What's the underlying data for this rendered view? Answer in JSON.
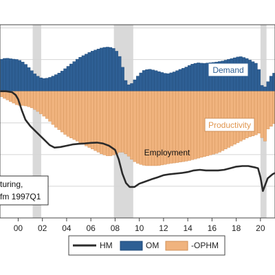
{
  "chart_data": {
    "type": "area",
    "x_tick_labels": [
      "00",
      "02",
      "04",
      "06",
      "08",
      "10",
      "12",
      "14",
      "16",
      "18",
      "20"
    ],
    "xlim": [
      1998.5,
      2021.2
    ],
    "ylim": [
      -0.4,
      0.21
    ],
    "recessions": [
      [
        2001.2,
        2001.9
      ],
      [
        2007.9,
        2009.5
      ],
      [
        2020.0,
        2020.5
      ]
    ],
    "colors": {
      "HM": "#2b2b2b",
      "OM": "#2e5f94",
      "OM_edge": "#1f4a78",
      "OPHM": "#f0b37e",
      "OPHM_edge": "#d08f55",
      "recession": "#d9d9d9"
    },
    "series": [
      {
        "name": "HM",
        "kind": "line",
        "points": [
          [
            1998.5,
            0.0
          ],
          [
            1999.0,
            0.0
          ],
          [
            1999.5,
            -0.003
          ],
          [
            1999.8,
            -0.012
          ],
          [
            2000.0,
            -0.025
          ],
          [
            2000.3,
            -0.06
          ],
          [
            2000.6,
            -0.09
          ],
          [
            2001.0,
            -0.11
          ],
          [
            2001.4,
            -0.125
          ],
          [
            2001.8,
            -0.14
          ],
          [
            2002.2,
            -0.155
          ],
          [
            2002.6,
            -0.17
          ],
          [
            2003.0,
            -0.178
          ],
          [
            2003.5,
            -0.176
          ],
          [
            2004.0,
            -0.172
          ],
          [
            2004.5,
            -0.168
          ],
          [
            2005.0,
            -0.166
          ],
          [
            2005.5,
            -0.165
          ],
          [
            2006.0,
            -0.163
          ],
          [
            2006.5,
            -0.162
          ],
          [
            2007.0,
            -0.165
          ],
          [
            2007.5,
            -0.172
          ],
          [
            2008.0,
            -0.185
          ],
          [
            2008.3,
            -0.215
          ],
          [
            2008.6,
            -0.26
          ],
          [
            2008.9,
            -0.29
          ],
          [
            2009.2,
            -0.302
          ],
          [
            2009.6,
            -0.302
          ],
          [
            2010.0,
            -0.292
          ],
          [
            2010.5,
            -0.285
          ],
          [
            2011.0,
            -0.278
          ],
          [
            2011.5,
            -0.272
          ],
          [
            2012.0,
            -0.265
          ],
          [
            2012.5,
            -0.262
          ],
          [
            2013.0,
            -0.26
          ],
          [
            2013.5,
            -0.258
          ],
          [
            2014.0,
            -0.255
          ],
          [
            2014.5,
            -0.25
          ],
          [
            2015.0,
            -0.248
          ],
          [
            2015.5,
            -0.25
          ],
          [
            2016.0,
            -0.25
          ],
          [
            2016.5,
            -0.25
          ],
          [
            2017.0,
            -0.248
          ],
          [
            2017.5,
            -0.243
          ],
          [
            2018.0,
            -0.238
          ],
          [
            2018.5,
            -0.236
          ],
          [
            2019.0,
            -0.236
          ],
          [
            2019.5,
            -0.24
          ],
          [
            2019.8,
            -0.243
          ],
          [
            2020.0,
            -0.272
          ],
          [
            2020.2,
            -0.315
          ],
          [
            2020.35,
            -0.3
          ],
          [
            2020.6,
            -0.275
          ],
          [
            2021.0,
            -0.262
          ],
          [
            2021.2,
            -0.258
          ]
        ]
      },
      {
        "name": "OM",
        "kind": "area",
        "points": [
          [
            1998.5,
            0.1
          ],
          [
            1999.0,
            0.105
          ],
          [
            1999.5,
            0.102
          ],
          [
            2000.0,
            0.1
          ],
          [
            2000.5,
            0.09
          ],
          [
            2001.0,
            0.07
          ],
          [
            2001.5,
            0.05
          ],
          [
            2002.0,
            0.04
          ],
          [
            2002.5,
            0.042
          ],
          [
            2003.0,
            0.05
          ],
          [
            2003.5,
            0.06
          ],
          [
            2004.0,
            0.075
          ],
          [
            2004.5,
            0.09
          ],
          [
            2005.0,
            0.105
          ],
          [
            2005.5,
            0.115
          ],
          [
            2006.0,
            0.125
          ],
          [
            2006.5,
            0.132
          ],
          [
            2007.0,
            0.138
          ],
          [
            2007.5,
            0.14
          ],
          [
            2007.9,
            0.135
          ],
          [
            2008.3,
            0.12
          ],
          [
            2008.6,
            0.08
          ],
          [
            2008.9,
            0.03
          ],
          [
            2009.1,
            0.02
          ],
          [
            2009.4,
            0.025
          ],
          [
            2009.8,
            0.045
          ],
          [
            2010.3,
            0.065
          ],
          [
            2010.8,
            0.07
          ],
          [
            2011.3,
            0.066
          ],
          [
            2011.8,
            0.06
          ],
          [
            2012.3,
            0.055
          ],
          [
            2012.8,
            0.06
          ],
          [
            2013.3,
            0.068
          ],
          [
            2013.8,
            0.075
          ],
          [
            2014.3,
            0.085
          ],
          [
            2014.8,
            0.09
          ],
          [
            2015.3,
            0.088
          ],
          [
            2015.8,
            0.09
          ],
          [
            2016.3,
            0.092
          ],
          [
            2016.8,
            0.095
          ],
          [
            2017.3,
            0.1
          ],
          [
            2017.8,
            0.105
          ],
          [
            2018.3,
            0.11
          ],
          [
            2018.8,
            0.105
          ],
          [
            2019.3,
            0.095
          ],
          [
            2019.8,
            0.085
          ],
          [
            2020.1,
            0.02
          ],
          [
            2020.3,
            0.01
          ],
          [
            2020.5,
            0.02
          ],
          [
            2020.8,
            0.045
          ],
          [
            2021.2,
            0.06
          ]
        ]
      },
      {
        "name": "-OPHM",
        "kind": "area",
        "points": [
          [
            1998.5,
            -0.015
          ],
          [
            1999.0,
            -0.025
          ],
          [
            1999.5,
            -0.035
          ],
          [
            2000.0,
            -0.045
          ],
          [
            2000.5,
            -0.045
          ],
          [
            2001.0,
            -0.05
          ],
          [
            2001.5,
            -0.06
          ],
          [
            2002.0,
            -0.075
          ],
          [
            2002.5,
            -0.09
          ],
          [
            2003.0,
            -0.11
          ],
          [
            2003.5,
            -0.125
          ],
          [
            2004.0,
            -0.14
          ],
          [
            2004.5,
            -0.15
          ],
          [
            2005.0,
            -0.16
          ],
          [
            2005.5,
            -0.17
          ],
          [
            2006.0,
            -0.18
          ],
          [
            2006.5,
            -0.19
          ],
          [
            2007.0,
            -0.2
          ],
          [
            2007.5,
            -0.205
          ],
          [
            2008.0,
            -0.2
          ],
          [
            2008.5,
            -0.19
          ],
          [
            2009.0,
            -0.2
          ],
          [
            2009.5,
            -0.22
          ],
          [
            2010.0,
            -0.23
          ],
          [
            2010.5,
            -0.235
          ],
          [
            2011.0,
            -0.235
          ],
          [
            2011.5,
            -0.235
          ],
          [
            2012.0,
            -0.232
          ],
          [
            2012.5,
            -0.228
          ],
          [
            2013.0,
            -0.226
          ],
          [
            2013.5,
            -0.223
          ],
          [
            2014.0,
            -0.22
          ],
          [
            2014.5,
            -0.215
          ],
          [
            2015.0,
            -0.21
          ],
          [
            2015.5,
            -0.205
          ],
          [
            2016.0,
            -0.2
          ],
          [
            2016.5,
            -0.195
          ],
          [
            2017.0,
            -0.185
          ],
          [
            2017.5,
            -0.175
          ],
          [
            2018.0,
            -0.165
          ],
          [
            2018.5,
            -0.155
          ],
          [
            2019.0,
            -0.145
          ],
          [
            2019.5,
            -0.14
          ],
          [
            2020.0,
            -0.13
          ],
          [
            2020.3,
            -0.17
          ],
          [
            2020.6,
            -0.12
          ],
          [
            2021.2,
            -0.1
          ]
        ]
      }
    ],
    "annotations": {
      "demand": "Demand",
      "productivity": "Productivity",
      "employment": "Employment"
    },
    "note_lines": [
      "turing,",
      "fm 1997Q1"
    ],
    "legend": [
      "HM",
      "OM",
      "-OPHM"
    ],
    "grid": true,
    "legend_position": "bottom"
  }
}
